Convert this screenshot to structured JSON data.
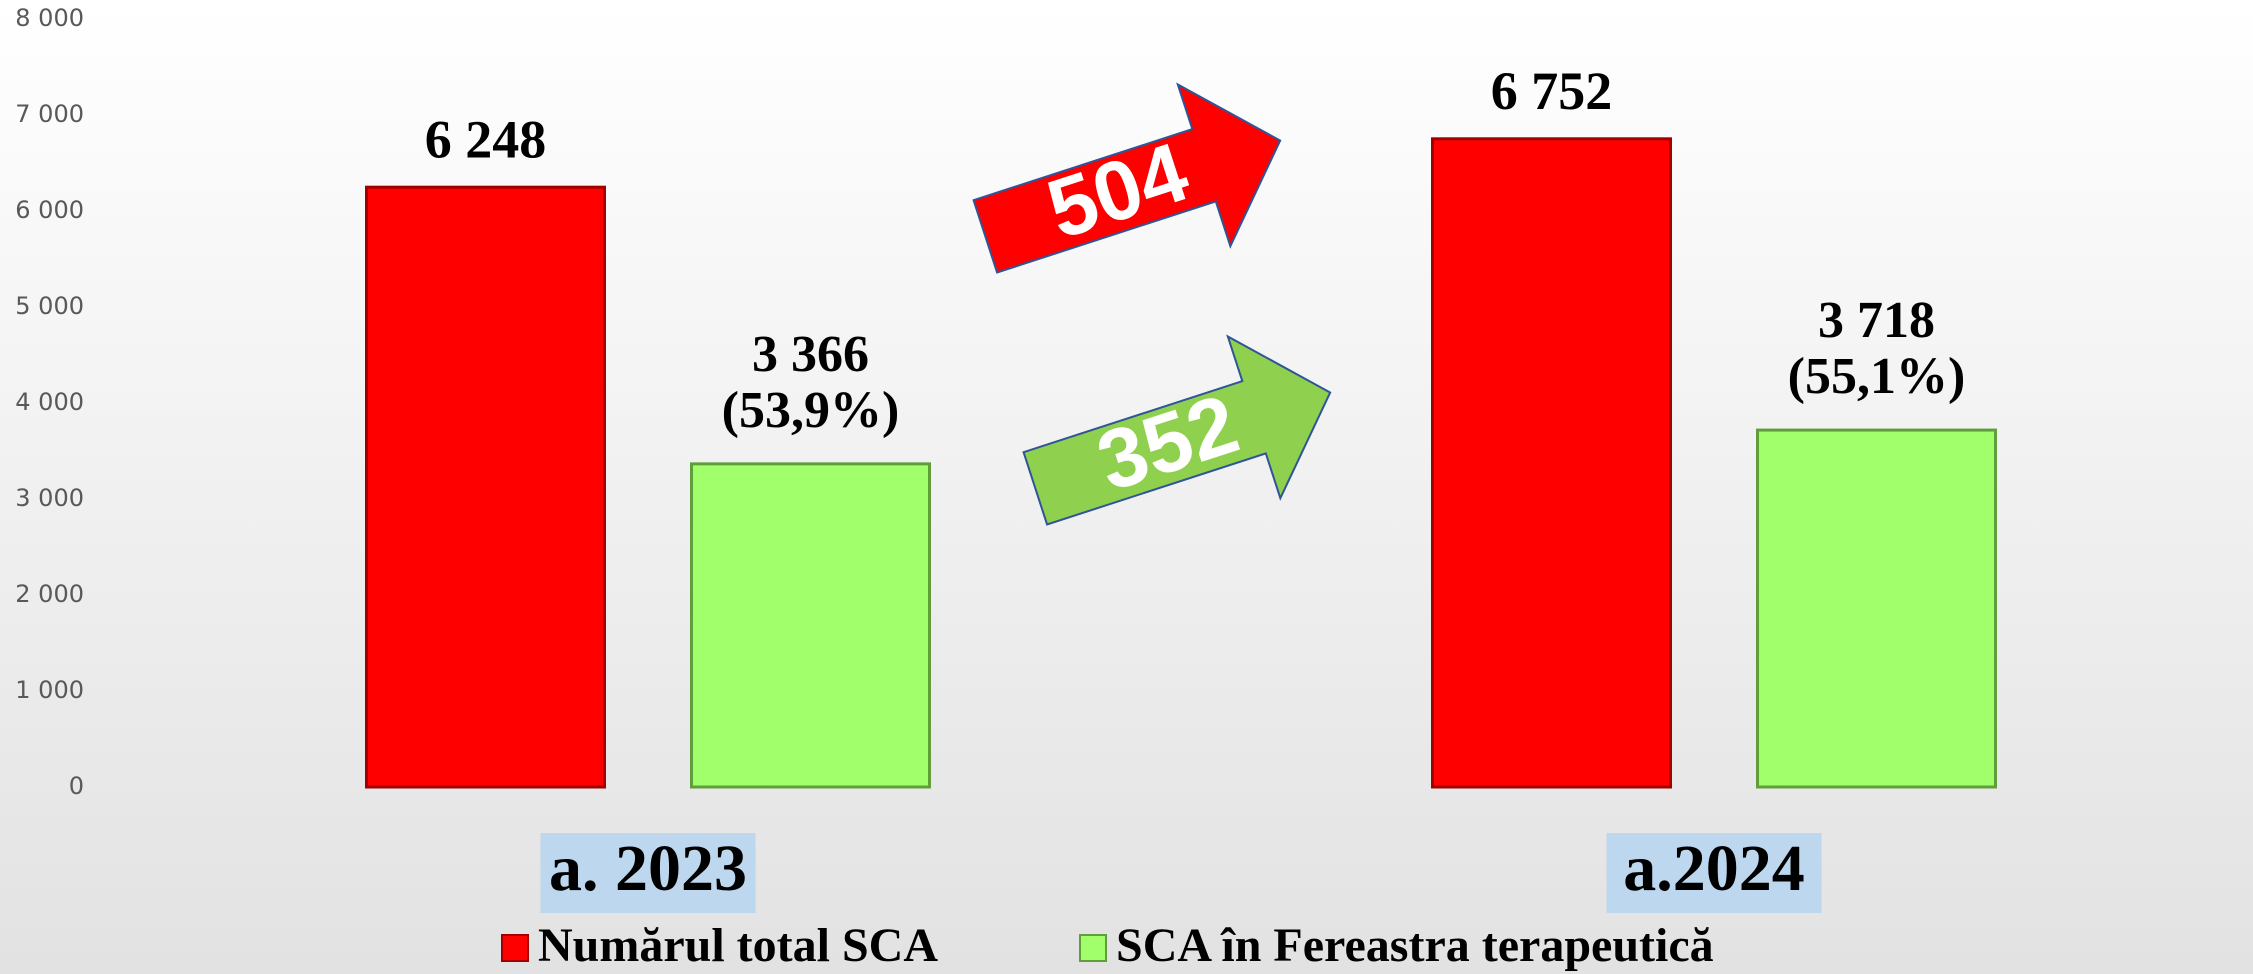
{
  "chart_data": {
    "type": "bar",
    "categories": [
      "a. 2023",
      "a.2024"
    ],
    "series": [
      {
        "name": "Numărul total SCA",
        "color": "#ff0000",
        "values": [
          6248,
          6752
        ],
        "value_labels": [
          "6 248",
          "6 752"
        ]
      },
      {
        "name": "SCA în Fereastra terapeutică",
        "color": "#a0ff6a",
        "values": [
          3366,
          3718
        ],
        "value_labels": [
          [
            "3 366",
            "(53,9%)"
          ],
          [
            "3 718",
            "(55,1%)"
          ]
        ]
      }
    ],
    "ylim": [
      0,
      8000
    ],
    "yticks": [
      0,
      {
        "value": 1000,
        "label": "1 000"
      },
      {
        "value": 2000,
        "label": "2 000"
      },
      {
        "value": 3000,
        "label": "3 000"
      },
      {
        "value": 4000,
        "label": "4 000"
      },
      {
        "value": 5000,
        "label": "5 000"
      },
      {
        "value": 6000,
        "label": "6 000"
      },
      {
        "value": 7000,
        "label": "7 000"
      },
      {
        "value": 8000,
        "label": "8 000"
      }
    ],
    "grid": true,
    "legend": "bottom",
    "annotations": [
      {
        "text": "504",
        "color": "#ff0000"
      },
      {
        "text": "352",
        "color": "#8fd14f"
      }
    ]
  }
}
